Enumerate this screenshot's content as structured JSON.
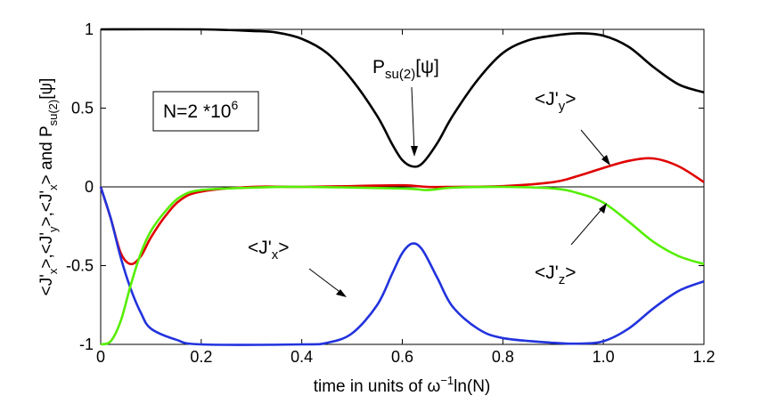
{
  "chart_data": {
    "type": "line",
    "xlabel": "time in units of ω⁻¹ln(N)",
    "ylabel": "<J'x>,<J'y>,<J'x> and Psu(2)[ψ]",
    "xlim": [
      0,
      1.2
    ],
    "ylim": [
      -1,
      1
    ],
    "xticks": [
      "0",
      "0.2",
      "0.4",
      "0.6",
      "0.8",
      "1.0",
      "1.2"
    ],
    "yticks": [
      "-1",
      "-0.5",
      "0",
      "0.5",
      "1"
    ],
    "grid": false,
    "zero_line": true,
    "box_label": "N=2 *10^6",
    "series": [
      {
        "name": "Psu(2)[ψ]",
        "color": "#000000",
        "points": [
          [
            0,
            1
          ],
          [
            0.2,
            1
          ],
          [
            0.3,
            0.99
          ],
          [
            0.35,
            0.98
          ],
          [
            0.4,
            0.94
          ],
          [
            0.45,
            0.85
          ],
          [
            0.5,
            0.68
          ],
          [
            0.55,
            0.45
          ],
          [
            0.58,
            0.27
          ],
          [
            0.6,
            0.17
          ],
          [
            0.62,
            0.13
          ],
          [
            0.64,
            0.15
          ],
          [
            0.67,
            0.28
          ],
          [
            0.7,
            0.45
          ],
          [
            0.75,
            0.68
          ],
          [
            0.8,
            0.85
          ],
          [
            0.85,
            0.93
          ],
          [
            0.9,
            0.96
          ],
          [
            0.95,
            0.975
          ],
          [
            1.0,
            0.96
          ],
          [
            1.05,
            0.89
          ],
          [
            1.1,
            0.76
          ],
          [
            1.15,
            0.65
          ],
          [
            1.2,
            0.6
          ]
        ]
      },
      {
        "name": "<J'y>",
        "color": "#e00000",
        "points": [
          [
            0,
            0
          ],
          [
            0.02,
            -0.2
          ],
          [
            0.04,
            -0.42
          ],
          [
            0.06,
            -0.49
          ],
          [
            0.08,
            -0.44
          ],
          [
            0.1,
            -0.32
          ],
          [
            0.13,
            -0.18
          ],
          [
            0.16,
            -0.08
          ],
          [
            0.2,
            -0.03
          ],
          [
            0.3,
            0
          ],
          [
            0.4,
            0
          ],
          [
            0.5,
            0.005
          ],
          [
            0.6,
            0.01
          ],
          [
            0.65,
            0
          ],
          [
            0.7,
            0
          ],
          [
            0.8,
            0.005
          ],
          [
            0.9,
            0.03
          ],
          [
            0.95,
            0.07
          ],
          [
            1.0,
            0.12
          ],
          [
            1.05,
            0.165
          ],
          [
            1.1,
            0.18
          ],
          [
            1.15,
            0.13
          ],
          [
            1.2,
            0.03
          ]
        ]
      },
      {
        "name": "<J'x>",
        "color": "#2233dd",
        "points": [
          [
            0,
            0
          ],
          [
            0.02,
            -0.2
          ],
          [
            0.04,
            -0.45
          ],
          [
            0.06,
            -0.65
          ],
          [
            0.08,
            -0.8
          ],
          [
            0.1,
            -0.9
          ],
          [
            0.15,
            -0.97
          ],
          [
            0.2,
            -1
          ],
          [
            0.4,
            -1
          ],
          [
            0.45,
            -0.99
          ],
          [
            0.5,
            -0.93
          ],
          [
            0.55,
            -0.75
          ],
          [
            0.58,
            -0.55
          ],
          [
            0.6,
            -0.42
          ],
          [
            0.62,
            -0.36
          ],
          [
            0.64,
            -0.4
          ],
          [
            0.67,
            -0.58
          ],
          [
            0.7,
            -0.76
          ],
          [
            0.75,
            -0.9
          ],
          [
            0.8,
            -0.96
          ],
          [
            0.9,
            -0.99
          ],
          [
            0.95,
            -0.995
          ],
          [
            1.0,
            -0.98
          ],
          [
            1.05,
            -0.9
          ],
          [
            1.1,
            -0.77
          ],
          [
            1.15,
            -0.66
          ],
          [
            1.2,
            -0.6
          ]
        ]
      },
      {
        "name": "<J'z>",
        "color": "#55ee00",
        "points": [
          [
            0,
            -1
          ],
          [
            0.02,
            -0.98
          ],
          [
            0.04,
            -0.85
          ],
          [
            0.06,
            -0.62
          ],
          [
            0.08,
            -0.42
          ],
          [
            0.1,
            -0.28
          ],
          [
            0.13,
            -0.15
          ],
          [
            0.16,
            -0.06
          ],
          [
            0.2,
            -0.02
          ],
          [
            0.3,
            -0.005
          ],
          [
            0.4,
            0
          ],
          [
            0.6,
            -0.01
          ],
          [
            0.65,
            -0.02
          ],
          [
            0.7,
            -0.005
          ],
          [
            0.8,
            0
          ],
          [
            0.9,
            -0.01
          ],
          [
            0.95,
            -0.04
          ],
          [
            1.0,
            -0.1
          ],
          [
            1.05,
            -0.22
          ],
          [
            1.1,
            -0.35
          ],
          [
            1.15,
            -0.44
          ],
          [
            1.2,
            -0.49
          ]
        ]
      }
    ]
  }
}
